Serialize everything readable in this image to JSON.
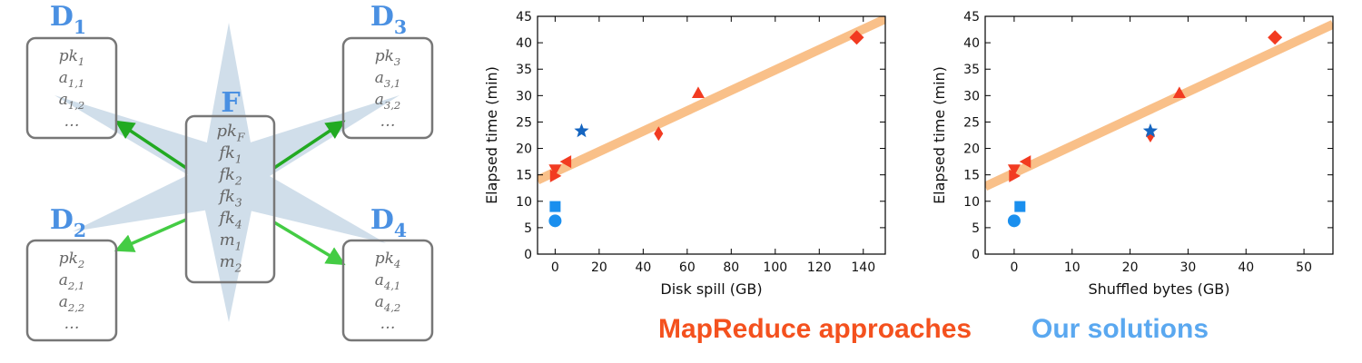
{
  "diagram": {
    "fact": {
      "label": "F",
      "attributes": [
        "pk_F",
        "fk_1",
        "fk_2",
        "fk_3",
        "fk_4",
        "m_1",
        "m_2"
      ]
    },
    "dimensions": [
      {
        "label": "D_1",
        "attributes": [
          "pk_1",
          "a_1,1",
          "a_1,2",
          "..."
        ]
      },
      {
        "label": "D_2",
        "attributes": [
          "pk_2",
          "a_2,1",
          "a_2,2",
          "..."
        ]
      },
      {
        "label": "D_3",
        "attributes": [
          "pk_3",
          "a_3,1",
          "a_3,2",
          "..."
        ]
      },
      {
        "label": "D_4",
        "attributes": [
          "pk_4",
          "a_4,1",
          "a_4,2",
          "..."
        ]
      }
    ],
    "colors": {
      "star": "#c8d8e6",
      "box_border": "#777777",
      "arrow_dark": "#22aa22",
      "arrow_light": "#44cc44",
      "label": "#4a90e2"
    }
  },
  "chart_data": [
    {
      "type": "scatter",
      "xlabel": "Disk spill (GB)",
      "ylabel": "Elapsed time (min)",
      "xlim": [
        -8,
        150
      ],
      "ylim": [
        0,
        45
      ],
      "xticks": [
        0,
        20,
        40,
        60,
        80,
        100,
        120,
        140
      ],
      "yticks": [
        0,
        5,
        10,
        15,
        20,
        25,
        30,
        35,
        40,
        45
      ],
      "grid": false,
      "trend_line": {
        "x": [
          -8,
          150
        ],
        "y": [
          14,
          44.5
        ],
        "color": "#f9c089"
      },
      "series": [
        {
          "group": "mapreduce",
          "color": "#f23b21",
          "points": [
            {
              "x": 0,
              "y": 16.0,
              "marker": "triangle-down"
            },
            {
              "x": 0,
              "y": 14.8,
              "marker": "triangle-right"
            },
            {
              "x": 5,
              "y": 17.5,
              "marker": "triangle-left"
            },
            {
              "x": 47,
              "y": 22.8,
              "marker": "thin-diamond"
            },
            {
              "x": 65,
              "y": 30.5,
              "marker": "triangle-up"
            },
            {
              "x": 137,
              "y": 41.0,
              "marker": "diamond"
            }
          ]
        },
        {
          "group": "ours",
          "color": "#1a8fee",
          "points": [
            {
              "x": 0,
              "y": 9.0,
              "marker": "square"
            },
            {
              "x": 0,
              "y": 6.3,
              "marker": "circle"
            }
          ]
        },
        {
          "group": "other",
          "color": "#1565c0",
          "points": [
            {
              "x": 12,
              "y": 23.3,
              "marker": "star"
            }
          ]
        }
      ]
    },
    {
      "type": "scatter",
      "xlabel": "Shuffled bytes (GB)",
      "ylabel": "Elapsed time (min)",
      "xlim": [
        -5,
        55
      ],
      "ylim": [
        0,
        45
      ],
      "xticks": [
        0,
        10,
        20,
        30,
        40,
        50
      ],
      "yticks": [
        0,
        5,
        10,
        15,
        20,
        25,
        30,
        35,
        40,
        45
      ],
      "grid": false,
      "trend_line": {
        "x": [
          -5,
          55
        ],
        "y": [
          12.8,
          43.5
        ],
        "color": "#f9c089"
      },
      "series": [
        {
          "group": "mapreduce",
          "color": "#f23b21",
          "points": [
            {
              "x": 0,
              "y": 16.0,
              "marker": "triangle-down"
            },
            {
              "x": 0,
              "y": 14.8,
              "marker": "triangle-right"
            },
            {
              "x": 2,
              "y": 17.5,
              "marker": "triangle-left"
            },
            {
              "x": 23.5,
              "y": 22.5,
              "marker": "thin-diamond"
            },
            {
              "x": 28.5,
              "y": 30.5,
              "marker": "triangle-up"
            },
            {
              "x": 45,
              "y": 41.0,
              "marker": "diamond"
            }
          ]
        },
        {
          "group": "ours",
          "color": "#1a8fee",
          "points": [
            {
              "x": 1,
              "y": 9.0,
              "marker": "square"
            },
            {
              "x": 0,
              "y": 6.3,
              "marker": "circle"
            }
          ]
        },
        {
          "group": "other",
          "color": "#1565c0",
          "points": [
            {
              "x": 23.5,
              "y": 23.3,
              "marker": "star"
            }
          ]
        }
      ]
    }
  ],
  "legend": {
    "mapreduce_label": "MapReduce approaches",
    "ours_label": "Our solutions",
    "mapreduce_color": "#f4511e",
    "ours_color": "#5aa8f0"
  }
}
